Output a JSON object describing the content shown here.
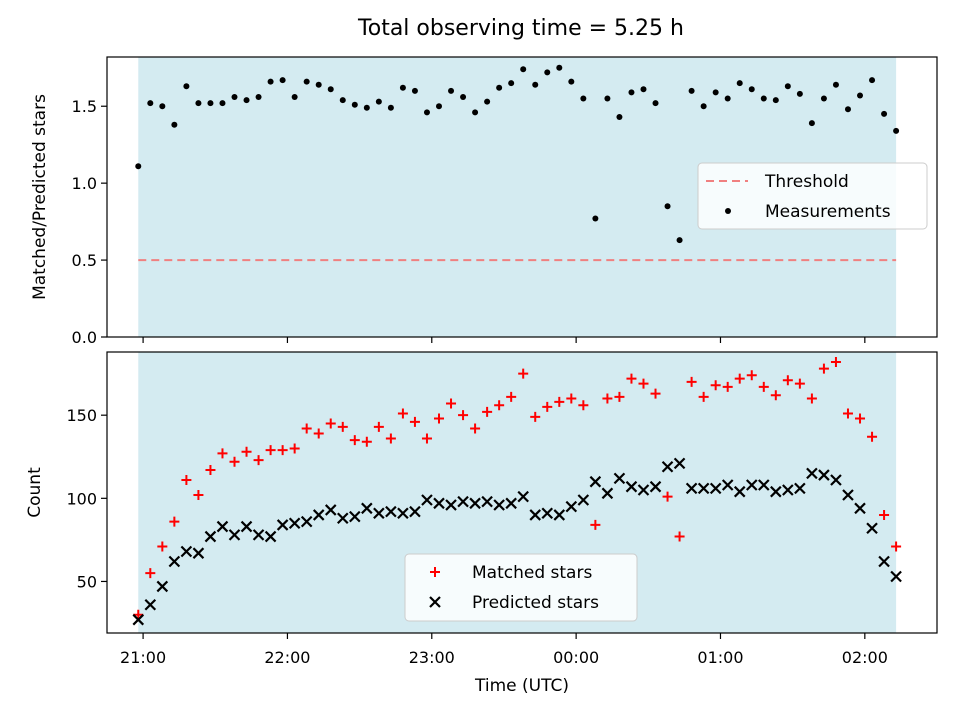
{
  "figure": {
    "title": "Total observing time = 5.25 h"
  },
  "colors": {
    "band": "#d4ebf1",
    "threshold": "#f08080",
    "measurement": "#000000",
    "matched": "#ff0000",
    "predicted": "#000000"
  },
  "chart_data": [
    {
      "type": "scatter",
      "title": "Total observing time = 5.25 h",
      "ylabel": "Matched/Predicted stars",
      "xlabel": "",
      "xlim": [
        "20:45",
        "02:30"
      ],
      "ylim": [
        0,
        1.82
      ],
      "yticks": [
        "0.0",
        "0.5",
        "1.0",
        "1.5"
      ],
      "xticks": [
        "21:00",
        "22:00",
        "23:00",
        "00:00",
        "01:00",
        "02:00"
      ],
      "observing_window": [
        "20:58",
        "02:13"
      ],
      "legend": {
        "placement": "center-right",
        "entries": [
          "Threshold",
          "Measurements"
        ]
      },
      "threshold": 0.5,
      "series": [
        {
          "name": "Measurements",
          "marker": "dot",
          "x": [
            "20:58",
            "21:03",
            "21:08",
            "21:13",
            "21:18",
            "21:23",
            "21:28",
            "21:33",
            "21:38",
            "21:43",
            "21:48",
            "21:53",
            "21:58",
            "22:03",
            "22:08",
            "22:13",
            "22:18",
            "22:23",
            "22:28",
            "22:33",
            "22:38",
            "22:43",
            "22:48",
            "22:53",
            "22:58",
            "23:03",
            "23:08",
            "23:13",
            "23:18",
            "23:23",
            "23:28",
            "23:33",
            "23:38",
            "23:43",
            "23:48",
            "23:53",
            "23:58",
            "00:03",
            "00:08",
            "00:13",
            "00:18",
            "00:23",
            "00:28",
            "00:33",
            "00:38",
            "00:43",
            "00:48",
            "00:53",
            "00:58",
            "01:03",
            "01:08",
            "01:13",
            "01:18",
            "01:23",
            "01:28",
            "01:33",
            "01:38",
            "01:43",
            "01:48",
            "01:53",
            "01:58",
            "02:03",
            "02:08",
            "02:13"
          ],
          "y": [
            1.11,
            1.52,
            1.5,
            1.38,
            1.63,
            1.52,
            1.52,
            1.52,
            1.56,
            1.54,
            1.56,
            1.66,
            1.67,
            1.56,
            1.66,
            1.64,
            1.61,
            1.54,
            1.51,
            1.49,
            1.53,
            1.49,
            1.62,
            1.6,
            1.46,
            1.5,
            1.6,
            1.56,
            1.46,
            1.53,
            1.62,
            1.65,
            1.74,
            1.64,
            1.72,
            1.75,
            1.66,
            1.55,
            0.77,
            1.55,
            1.43,
            1.59,
            1.61,
            1.52,
            0.85,
            0.63,
            1.6,
            1.5,
            1.59,
            1.55,
            1.65,
            1.61,
            1.55,
            1.54,
            1.63,
            1.58,
            1.39,
            1.55,
            1.64,
            1.48,
            1.57,
            1.67,
            1.45,
            1.34
          ]
        }
      ]
    },
    {
      "type": "scatter",
      "title": "",
      "ylabel": "Count",
      "xlabel": "Time (UTC)",
      "xlim": [
        "20:45",
        "02:30"
      ],
      "ylim": [
        19,
        188
      ],
      "yticks": [
        "50",
        "100",
        "150"
      ],
      "xticks": [
        "21:00",
        "22:00",
        "23:00",
        "00:00",
        "01:00",
        "02:00"
      ],
      "observing_window": [
        "20:58",
        "02:13"
      ],
      "legend": {
        "placement": "bottom-center",
        "entries": [
          "Matched stars",
          "Predicted stars"
        ]
      },
      "series": [
        {
          "name": "Matched stars",
          "marker": "plus",
          "x": [
            "20:58",
            "21:03",
            "21:08",
            "21:13",
            "21:18",
            "21:23",
            "21:28",
            "21:33",
            "21:38",
            "21:43",
            "21:48",
            "21:53",
            "21:58",
            "22:03",
            "22:08",
            "22:13",
            "22:18",
            "22:23",
            "22:28",
            "22:33",
            "22:38",
            "22:43",
            "22:48",
            "22:53",
            "22:58",
            "23:03",
            "23:08",
            "23:13",
            "23:18",
            "23:23",
            "23:28",
            "23:33",
            "23:38",
            "23:43",
            "23:48",
            "23:53",
            "23:58",
            "00:03",
            "00:08",
            "00:13",
            "00:18",
            "00:23",
            "00:28",
            "00:33",
            "00:38",
            "00:43",
            "00:48",
            "00:53",
            "00:58",
            "01:03",
            "01:08",
            "01:13",
            "01:18",
            "01:23",
            "01:28",
            "01:33",
            "01:38",
            "01:43",
            "01:48",
            "01:53",
            "01:58",
            "02:03",
            "02:08",
            "02:13"
          ],
          "y": [
            30,
            55,
            71,
            86,
            111,
            102,
            117,
            127,
            122,
            128,
            123,
            129,
            129,
            130,
            142,
            139,
            145,
            143,
            135,
            134,
            143,
            136,
            151,
            146,
            136,
            148,
            157,
            150,
            142,
            152,
            156,
            161,
            175,
            149,
            155,
            158,
            160,
            156,
            84,
            160,
            161,
            172,
            169,
            163,
            101,
            77,
            170,
            161,
            168,
            167,
            172,
            174,
            167,
            162,
            171,
            169,
            160,
            178,
            182,
            151,
            148,
            137,
            90,
            71
          ]
        },
        {
          "name": "Predicted stars",
          "marker": "x",
          "x": [
            "20:58",
            "21:03",
            "21:08",
            "21:13",
            "21:18",
            "21:23",
            "21:28",
            "21:33",
            "21:38",
            "21:43",
            "21:48",
            "21:53",
            "21:58",
            "22:03",
            "22:08",
            "22:13",
            "22:18",
            "22:23",
            "22:28",
            "22:33",
            "22:38",
            "22:43",
            "22:48",
            "22:53",
            "22:58",
            "23:03",
            "23:08",
            "23:13",
            "23:18",
            "23:23",
            "23:28",
            "23:33",
            "23:38",
            "23:43",
            "23:48",
            "23:53",
            "23:58",
            "00:03",
            "00:08",
            "00:13",
            "00:18",
            "00:23",
            "00:28",
            "00:33",
            "00:38",
            "00:43",
            "00:48",
            "00:53",
            "00:58",
            "01:03",
            "01:08",
            "01:13",
            "01:18",
            "01:23",
            "01:28",
            "01:33",
            "01:38",
            "01:43",
            "01:48",
            "01:53",
            "01:58",
            "02:03",
            "02:08",
            "02:13"
          ],
          "y": [
            27,
            36,
            47,
            62,
            68,
            67,
            77,
            83,
            78,
            83,
            78,
            77,
            84,
            85,
            86,
            90,
            93,
            88,
            89,
            94,
            91,
            92,
            91,
            92,
            99,
            97,
            96,
            98,
            97,
            98,
            96,
            97,
            101,
            90,
            91,
            90,
            95,
            99,
            110,
            103,
            112,
            107,
            105,
            107,
            119,
            121,
            106,
            106,
            106,
            108,
            104,
            108,
            108,
            104,
            105,
            106,
            115,
            114,
            111,
            102,
            94,
            82,
            62,
            53
          ]
        }
      ]
    }
  ]
}
